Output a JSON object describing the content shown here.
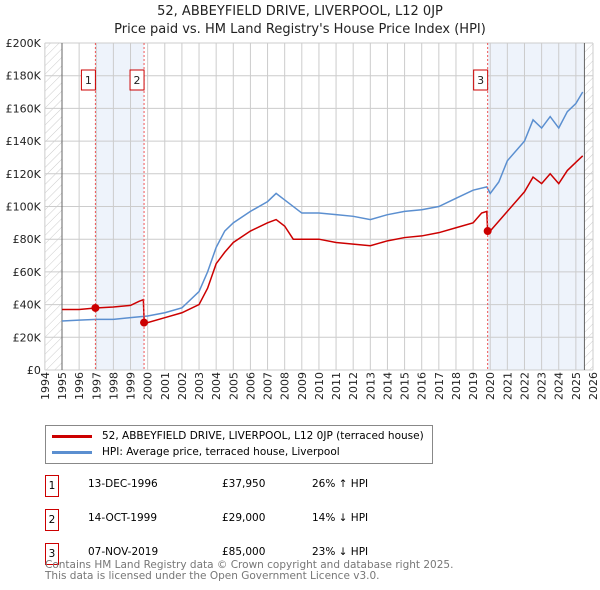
{
  "chart_data": {
    "type": "line",
    "title": "52, ABBEYFIELD DRIVE, LIVERPOOL, L12 0JP",
    "subtitle": "Price paid vs. HM Land Registry's House Price Index (HPI)",
    "xlim": [
      1994,
      2026
    ],
    "ylim": [
      0,
      200000
    ],
    "x_ticks": [
      "1994",
      "1995",
      "1996",
      "1997",
      "1998",
      "1999",
      "2000",
      "2001",
      "2002",
      "2003",
      "2004",
      "2005",
      "2006",
      "2007",
      "2008",
      "2009",
      "2010",
      "2011",
      "2012",
      "2013",
      "2014",
      "2015",
      "2016",
      "2017",
      "2018",
      "2019",
      "2020",
      "2021",
      "2022",
      "2023",
      "2024",
      "2025",
      "2026"
    ],
    "y_ticks": [
      {
        "v": 0,
        "l": "£0"
      },
      {
        "v": 20000,
        "l": "£20K"
      },
      {
        "v": 40000,
        "l": "£40K"
      },
      {
        "v": 60000,
        "l": "£60K"
      },
      {
        "v": 80000,
        "l": "£80K"
      },
      {
        "v": 100000,
        "l": "£100K"
      },
      {
        "v": 120000,
        "l": "£120K"
      },
      {
        "v": 140000,
        "l": "£140K"
      },
      {
        "v": 160000,
        "l": "£160K"
      },
      {
        "v": 180000,
        "l": "£180K"
      },
      {
        "v": 200000,
        "l": "£200K"
      }
    ],
    "series": [
      {
        "name": "52, ABBEYFIELD DRIVE, LIVERPOOL, L12 0JP (terraced house)",
        "color": "#cc0000",
        "x": [
          1995,
          1996,
          1996.95,
          1998,
          1999,
          1999.5,
          1999.75,
          1999.8,
          2000,
          2001,
          2002,
          2003,
          2003.5,
          2004,
          2004.5,
          2005,
          2006,
          2007,
          2007.5,
          2008,
          2008.5,
          2009,
          2010,
          2011,
          2012,
          2013,
          2014,
          2015,
          2016,
          2017,
          2018,
          2019,
          2019.5,
          2019.8,
          2019.85,
          2020,
          2021,
          2022,
          2022.5,
          2023,
          2023.5,
          2024,
          2024.5,
          2025,
          2025.4
        ],
        "y": [
          37000,
          37000,
          37950,
          38500,
          39500,
          42000,
          43000,
          29000,
          29000,
          32000,
          35000,
          40000,
          50000,
          65000,
          72000,
          78000,
          85000,
          90000,
          92000,
          88000,
          80000,
          80000,
          80000,
          78000,
          77000,
          76000,
          79000,
          81000,
          82000,
          84000,
          87000,
          90000,
          96000,
          97000,
          85000,
          85000,
          97000,
          109000,
          118000,
          114000,
          120000,
          114000,
          122000,
          127000,
          131000
        ]
      },
      {
        "name": "HPI: Average price, terraced house, Liverpool",
        "color": "#5b8fd0",
        "x": [
          1995,
          1996,
          1997,
          1998,
          1999,
          2000,
          2001,
          2002,
          2003,
          2003.5,
          2004,
          2004.5,
          2005,
          2006,
          2007,
          2007.5,
          2008,
          2009,
          2010,
          2011,
          2012,
          2013,
          2014,
          2015,
          2016,
          2017,
          2018,
          2019,
          2019.8,
          2020,
          2020.5,
          2021,
          2022,
          2022.5,
          2023,
          2023.5,
          2024,
          2024.5,
          2025,
          2025.4
        ],
        "y": [
          30000,
          30500,
          31000,
          31000,
          32000,
          33000,
          35000,
          38000,
          48000,
          60000,
          75000,
          85000,
          90000,
          97000,
          103000,
          108000,
          104000,
          96000,
          96000,
          95000,
          94000,
          92000,
          95000,
          97000,
          98000,
          100000,
          105000,
          110000,
          112000,
          108000,
          115000,
          128000,
          140000,
          153000,
          148000,
          155000,
          148000,
          158000,
          163000,
          170000
        ]
      }
    ],
    "sales": [
      {
        "n": "1",
        "x": 1996.95,
        "y": 37950
      },
      {
        "n": "2",
        "x": 1999.79,
        "y": 29000
      },
      {
        "n": "3",
        "x": 2019.85,
        "y": 85000
      }
    ],
    "shaded": [
      [
        1996.95,
        1999.79
      ],
      [
        2019.85,
        2025.5
      ]
    ]
  },
  "legend": [
    "52, ABBEYFIELD DRIVE, LIVERPOOL, L12 0JP (terraced house)",
    "HPI: Average price, terraced house, Liverpool"
  ],
  "table": [
    {
      "n": "1",
      "date": "13-DEC-1996",
      "price": "£37,950",
      "hpi": "26% ↑ HPI"
    },
    {
      "n": "2",
      "date": "14-OCT-1999",
      "price": "£29,000",
      "hpi": "14% ↓ HPI"
    },
    {
      "n": "3",
      "date": "07-NOV-2019",
      "price": "£85,000",
      "hpi": "23% ↓ HPI"
    }
  ],
  "footer": [
    "Contains HM Land Registry data © Crown copyright and database right 2025.",
    "This data is licensed under the Open Government Licence v3.0."
  ]
}
